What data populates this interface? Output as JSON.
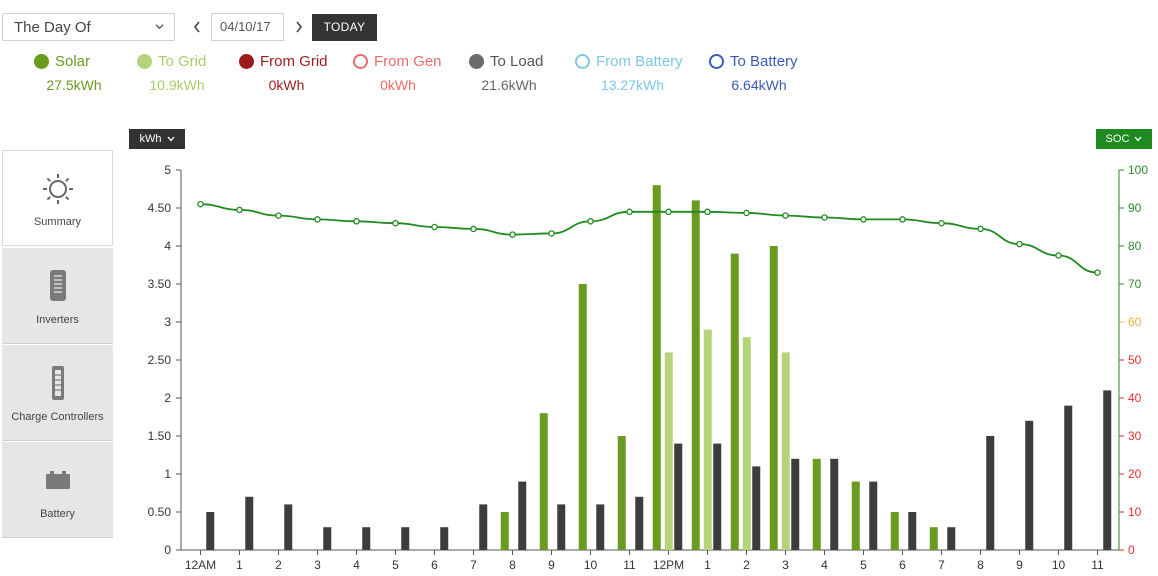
{
  "toolbar": {
    "period": "The Day Of",
    "date": "04/10/17",
    "today_label": "TODAY",
    "prev_icon": "chevron-left-icon",
    "next_icon": "chevron-right-icon"
  },
  "legend": [
    {
      "label": "Solar",
      "value": "27.5kWh",
      "color": "#6a9a1f",
      "filled": true,
      "label_color": "#6a9a1f",
      "value_color": "#6a9a1f"
    },
    {
      "label": "To Grid",
      "value": "10.9kWh",
      "color": "#b5d47a",
      "filled": true,
      "label_color": "#a9cd6a",
      "value_color": "#a9cd6a"
    },
    {
      "label": "From Grid",
      "value": "0kWh",
      "color": "#9b1c1c",
      "filled": true,
      "label_color": "#9b1c1c",
      "value_color": "#9b1c1c"
    },
    {
      "label": "From Gen",
      "value": "0kWh",
      "color": "#e86b6b",
      "filled": false,
      "label_color": "#e86b6b",
      "value_color": "#e86b6b"
    },
    {
      "label": "To Load",
      "value": "21.6kWh",
      "color": "#6b6b6b",
      "filled": true,
      "label_color": "#555555",
      "value_color": "#666666"
    },
    {
      "label": "From Battery",
      "value": "13.27kWh",
      "color": "#7cc8e6",
      "filled": false,
      "label_color": "#7cc8e6",
      "value_color": "#7cc8e6"
    },
    {
      "label": "To Battery",
      "value": "6.64kWh",
      "color": "#3c5bb8",
      "filled": false,
      "label_color": "#3c5bb8",
      "value_color": "#3c5bb8"
    }
  ],
  "sidebar": [
    {
      "label": "Summary",
      "icon": "sun-icon",
      "active": true
    },
    {
      "label": "Inverters",
      "icon": "inverter-icon",
      "active": false
    },
    {
      "label": "Charge Controllers",
      "icon": "charge-controller-icon",
      "active": false
    },
    {
      "label": "Battery",
      "icon": "battery-icon",
      "active": false
    }
  ],
  "units": {
    "left": "kWh",
    "right": "SOC"
  },
  "chart_data": {
    "type": "bar",
    "categories": [
      "12AM",
      "1",
      "2",
      "3",
      "4",
      "5",
      "6",
      "7",
      "8",
      "9",
      "10",
      "11",
      "12PM",
      "1",
      "2",
      "3",
      "4",
      "5",
      "6",
      "7",
      "8",
      "9",
      "10",
      "11"
    ],
    "series": [
      {
        "name": "Solar",
        "color": "#6a9a1f",
        "values": [
          0,
          0,
          0,
          0,
          0,
          0,
          0,
          0,
          0.5,
          1.8,
          3.5,
          1.5,
          4.8,
          4.6,
          3.9,
          4.0,
          1.2,
          0.9,
          0.5,
          0.3,
          0,
          0,
          0,
          0
        ]
      },
      {
        "name": "To Grid",
        "color": "#b5d47a",
        "values": [
          0,
          0,
          0,
          0,
          0,
          0,
          0,
          0,
          0,
          0,
          0,
          0,
          2.6,
          2.9,
          2.8,
          2.6,
          0,
          0,
          0,
          0,
          0,
          0,
          0,
          0
        ]
      },
      {
        "name": "To Load",
        "color": "#3d3d3d",
        "values": [
          0.5,
          0.7,
          0.6,
          0.3,
          0.3,
          0.3,
          0.3,
          0.6,
          0.9,
          0.6,
          0.6,
          0.7,
          1.4,
          1.4,
          1.1,
          1.2,
          1.2,
          0.9,
          0.5,
          0.3,
          1.5,
          1.7,
          1.9,
          2.1
        ]
      },
      {
        "name": "SOC",
        "color": "#1f8a1f",
        "axis": "right",
        "values": [
          91,
          89.5,
          88,
          87,
          86.5,
          86,
          85,
          84.5,
          83,
          83.3,
          86.5,
          89,
          89,
          89,
          88.7,
          88,
          87.5,
          87,
          87,
          86,
          84.5,
          80.5,
          77.5,
          73
        ]
      }
    ],
    "y_left": {
      "min": 0,
      "max": 5,
      "ticks": [
        "0",
        "0.50",
        "1",
        "1.50",
        "2",
        "2.50",
        "3",
        "3.50",
        "4",
        "4.50",
        "5"
      ]
    },
    "y_right": {
      "min": 0,
      "max": 100,
      "ticks": [
        "0",
        "10",
        "20",
        "30",
        "40",
        "50",
        "60",
        "70",
        "80",
        "90",
        "100"
      ],
      "tick_colors": [
        "#e53030",
        "#e53030",
        "#e53030",
        "#e53030",
        "#e53030",
        "#e53030",
        "#f0b040",
        "#2e8b2e",
        "#2e8b2e",
        "#2e8b2e",
        "#2e8b2e"
      ]
    },
    "grid": false,
    "legend": "top"
  }
}
